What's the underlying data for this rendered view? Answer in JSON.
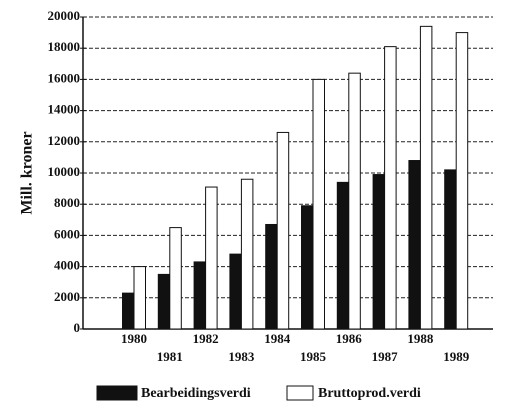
{
  "chart_data": {
    "type": "bar",
    "ylabel": "Mill. kroner",
    "categories": [
      "1980",
      "1981",
      "1982",
      "1983",
      "1984",
      "1985",
      "1986",
      "1987",
      "1988",
      "1989"
    ],
    "series": [
      {
        "name": "Bearbeidingsverdi",
        "color": "#111111",
        "values": [
          2300,
          3500,
          4300,
          4800,
          6700,
          7900,
          9400,
          9900,
          10800,
          10200
        ]
      },
      {
        "name": "Bruttoprod.verdi",
        "color": "#ffffff",
        "values": [
          4000,
          6500,
          9100,
          9600,
          12600,
          16000,
          16400,
          18100,
          19400,
          19000
        ]
      }
    ],
    "ylim": [
      0,
      20000
    ],
    "yticks": [
      0,
      2000,
      4000,
      6000,
      8000,
      10000,
      12000,
      14000,
      16000,
      18000,
      20000
    ],
    "grid": true,
    "legend": "bottom"
  }
}
